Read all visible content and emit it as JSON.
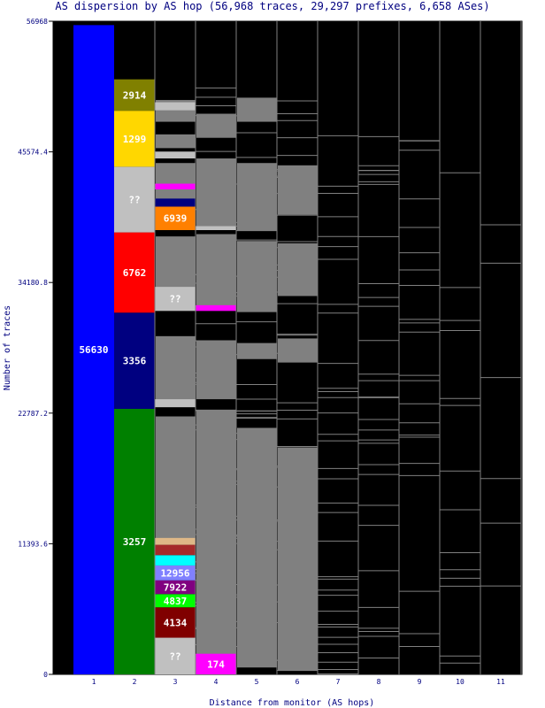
{
  "chart_data": {
    "type": "stacked-bar",
    "title": "AS dispersion by AS hop (56,968 traces, 29,297 prefixes, 6,658 ASes)",
    "xlabel": "Distance from monitor (AS hops)",
    "ylabel": "Number of traces",
    "x_ticks": [
      "1",
      "2",
      "3",
      "4",
      "5",
      "6",
      "7",
      "8",
      "9",
      "10",
      "11"
    ],
    "y_ticks": [
      "0",
      "11393.6",
      "22787.2",
      "34180.8",
      "45574.4",
      "56968"
    ],
    "ylim": [
      0,
      56968
    ],
    "background_color": "#000000",
    "grid": false,
    "columns": [
      {
        "hop": "1",
        "segments": [
          {
            "label": "56630",
            "start": 0,
            "end": 56630,
            "color": "#0000ff"
          }
        ]
      },
      {
        "hop": "2",
        "segments": [
          {
            "label": "3257",
            "start": 0,
            "end": 23160,
            "color": "#008000"
          },
          {
            "label": "3356",
            "start": 23160,
            "end": 31550,
            "color": "#000080"
          },
          {
            "label": "6762",
            "start": 31550,
            "end": 38550,
            "color": "#ff0000"
          },
          {
            "label": "??",
            "start": 38550,
            "end": 44280,
            "color": "#c0c0c0"
          },
          {
            "label": "1299",
            "start": 44280,
            "end": 49160,
            "color": "#ffd700"
          },
          {
            "label": "2914",
            "start": 49160,
            "end": 51900,
            "color": "#808000"
          }
        ]
      },
      {
        "hop": "3",
        "segments": [
          {
            "label": "??",
            "start": 0,
            "end": 3200,
            "color": "#c0c0c0"
          },
          {
            "label": "4134",
            "start": 3200,
            "end": 5850,
            "color": "#800000"
          },
          {
            "label": "4837",
            "start": 5850,
            "end": 7000,
            "color": "#00ff00"
          },
          {
            "label": "7922",
            "start": 7000,
            "end": 8200,
            "color": "#800080"
          },
          {
            "label": "12956",
            "start": 8200,
            "end": 9500,
            "color": "#8080ff"
          },
          {
            "label": "",
            "start": 9500,
            "end": 10400,
            "color": "#00ffff"
          },
          {
            "label": "",
            "start": 10400,
            "end": 11300,
            "color": "#a52a2a"
          },
          {
            "label": "",
            "start": 11300,
            "end": 11900,
            "color": "#deb887"
          },
          {
            "label": "",
            "start": 23300,
            "end": 24000,
            "color": "#c0c0c0"
          },
          {
            "label": "??",
            "start": 31700,
            "end": 33800,
            "color": "#c0c0c0"
          },
          {
            "label": "6939",
            "start": 38750,
            "end": 40800,
            "color": "#ff8000"
          },
          {
            "label": "",
            "start": 40800,
            "end": 41500,
            "color": "#000080"
          },
          {
            "label": "",
            "start": 42300,
            "end": 42800,
            "color": "#ff00ff"
          },
          {
            "label": "",
            "start": 45000,
            "end": 45600,
            "color": "#c0c0c0"
          },
          {
            "label": "",
            "start": 49200,
            "end": 49900,
            "color": "#c0c0c0"
          }
        ]
      },
      {
        "hop": "4",
        "segments": [
          {
            "label": "174",
            "start": 0,
            "end": 1800,
            "color": "#ff00ff"
          },
          {
            "label": "",
            "start": 31700,
            "end": 32200,
            "color": "#ff00ff"
          },
          {
            "label": "",
            "start": 38750,
            "end": 39100,
            "color": "#c0c0c0"
          }
        ]
      }
    ]
  }
}
